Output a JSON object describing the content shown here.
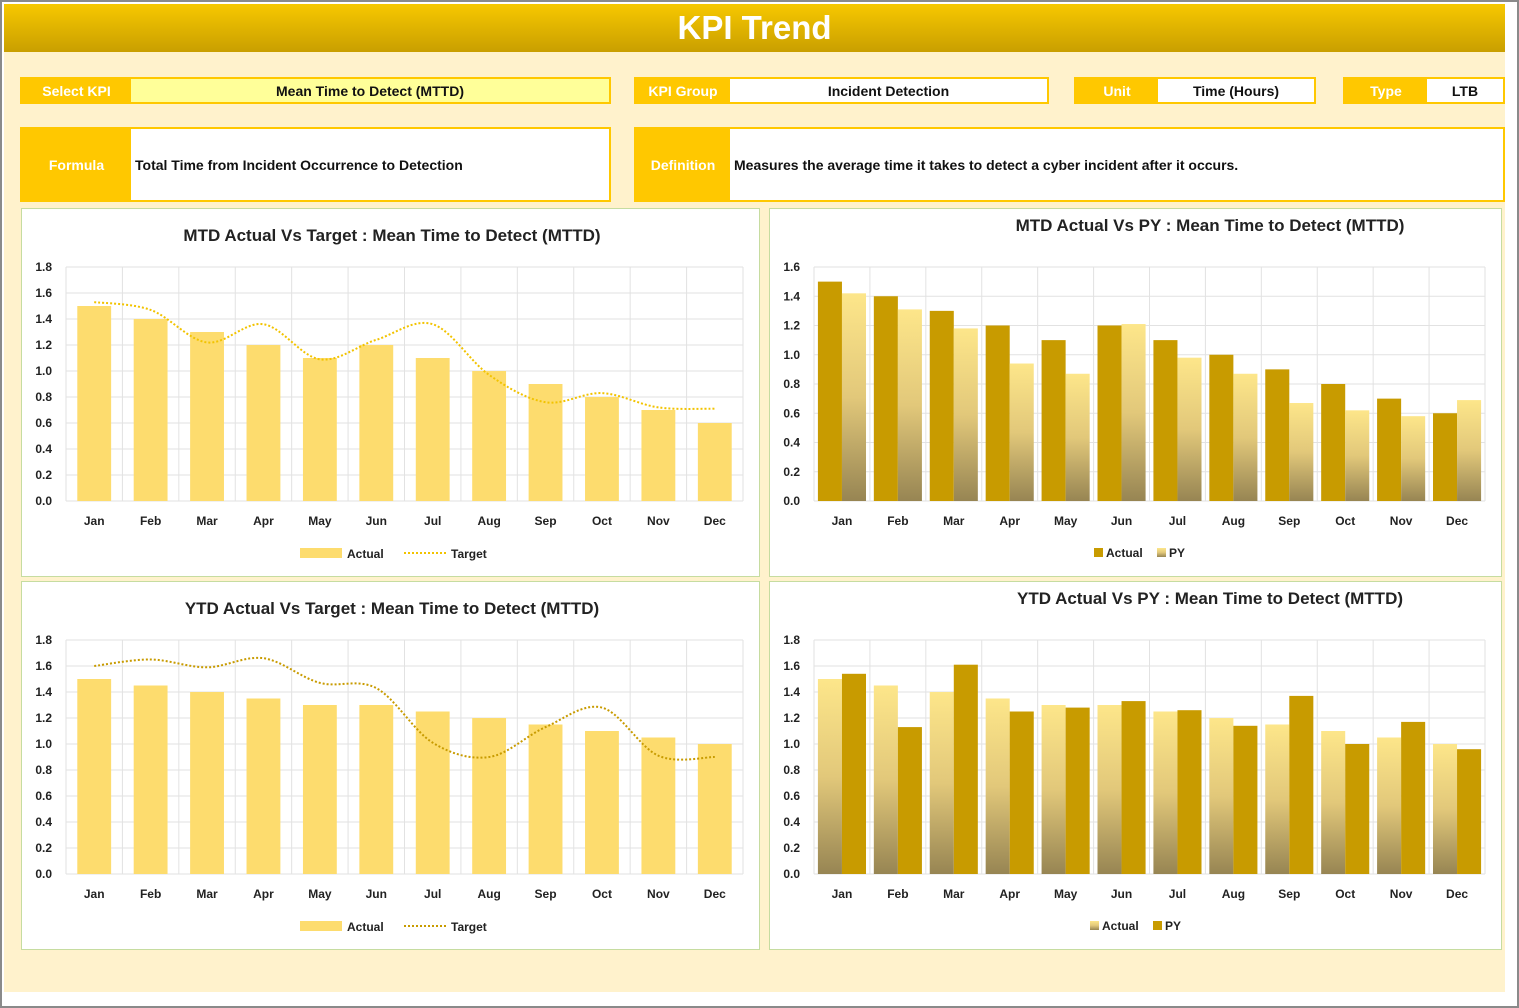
{
  "header": {
    "title": "KPI Trend"
  },
  "fields": {
    "select_kpi": {
      "label": "Select KPI",
      "value": "Mean Time to Detect (MTTD)"
    },
    "kpi_group": {
      "label": "KPI Group",
      "value": "Incident Detection"
    },
    "unit": {
      "label": "Unit",
      "value": "Time (Hours)"
    },
    "type": {
      "label": "Type",
      "value": "LTB"
    },
    "formula": {
      "label": "Formula",
      "value": "Total Time from Incident Occurrence to Detection"
    },
    "definition": {
      "label": "Definition",
      "value": "Measures the average time it takes to detect a cyber incident after it occurs."
    }
  },
  "colors": {
    "accent": "#ffc800",
    "bar_light": "#fddc6e",
    "bar_dark": "#c89b00"
  },
  "chart_data": [
    {
      "type": "bar+line",
      "title": "MTD Actual Vs Target : Mean Time to Detect (MTTD)",
      "categories": [
        "Jan",
        "Feb",
        "Mar",
        "Apr",
        "May",
        "Jun",
        "Jul",
        "Aug",
        "Sep",
        "Oct",
        "Nov",
        "Dec"
      ],
      "ylim": [
        0,
        1.8
      ],
      "yticks": [
        "0.0",
        "0.2",
        "0.4",
        "0.6",
        "0.8",
        "1.0",
        "1.2",
        "1.4",
        "1.6",
        "1.8"
      ],
      "grid": true,
      "legend": "bottom",
      "series": [
        {
          "name": "Actual",
          "kind": "bar",
          "values": [
            1.5,
            1.4,
            1.3,
            1.2,
            1.1,
            1.2,
            1.1,
            1.0,
            0.9,
            0.8,
            0.7,
            0.6
          ]
        },
        {
          "name": "Target",
          "kind": "line",
          "values": [
            1.53,
            1.47,
            1.22,
            1.36,
            1.09,
            1.24,
            1.36,
            0.97,
            0.76,
            0.83,
            0.72,
            0.71
          ]
        }
      ]
    },
    {
      "type": "bar",
      "title": "MTD Actual Vs PY : Mean Time to Detect (MTTD)",
      "categories": [
        "Jan",
        "Feb",
        "Mar",
        "Apr",
        "May",
        "Jun",
        "Jul",
        "Aug",
        "Sep",
        "Oct",
        "Nov",
        "Dec"
      ],
      "ylim": [
        0,
        1.6
      ],
      "yticks": [
        "0.0",
        "0.2",
        "0.4",
        "0.6",
        "0.8",
        "1.0",
        "1.2",
        "1.4",
        "1.6"
      ],
      "grid": true,
      "legend": "bottom",
      "series": [
        {
          "name": "Actual",
          "kind": "bar",
          "values": [
            1.5,
            1.4,
            1.3,
            1.2,
            1.1,
            1.2,
            1.1,
            1.0,
            0.9,
            0.8,
            0.7,
            0.6
          ]
        },
        {
          "name": "PY",
          "kind": "bar",
          "values": [
            1.42,
            1.31,
            1.18,
            0.94,
            0.87,
            1.21,
            0.98,
            0.87,
            0.67,
            0.62,
            0.58,
            0.69
          ]
        }
      ]
    },
    {
      "type": "bar+line",
      "title": "YTD Actual Vs Target : Mean Time to Detect (MTTD)",
      "categories": [
        "Jan",
        "Feb",
        "Mar",
        "Apr",
        "May",
        "Jun",
        "Jul",
        "Aug",
        "Sep",
        "Oct",
        "Nov",
        "Dec"
      ],
      "ylim": [
        0,
        1.8
      ],
      "yticks": [
        "0.0",
        "0.2",
        "0.4",
        "0.6",
        "0.8",
        "1.0",
        "1.2",
        "1.4",
        "1.6",
        "1.8"
      ],
      "grid": true,
      "legend": "bottom",
      "series": [
        {
          "name": "Actual",
          "kind": "bar",
          "values": [
            1.5,
            1.45,
            1.4,
            1.35,
            1.3,
            1.3,
            1.25,
            1.2,
            1.15,
            1.1,
            1.05,
            1.0
          ]
        },
        {
          "name": "Target",
          "kind": "line",
          "values": [
            1.6,
            1.65,
            1.59,
            1.66,
            1.47,
            1.43,
            1.01,
            0.9,
            1.13,
            1.28,
            0.91,
            0.9
          ]
        }
      ]
    },
    {
      "type": "bar",
      "title": "YTD Actual Vs PY : Mean Time to Detect (MTTD)",
      "categories": [
        "Jan",
        "Feb",
        "Mar",
        "Apr",
        "May",
        "Jun",
        "Jul",
        "Aug",
        "Sep",
        "Oct",
        "Nov",
        "Dec"
      ],
      "ylim": [
        0,
        1.8
      ],
      "yticks": [
        "0.0",
        "0.2",
        "0.4",
        "0.6",
        "0.8",
        "1.0",
        "1.2",
        "1.4",
        "1.6",
        "1.8"
      ],
      "grid": true,
      "legend": "bottom",
      "series": [
        {
          "name": "Actual",
          "kind": "bar",
          "values": [
            1.5,
            1.45,
            1.4,
            1.35,
            1.3,
            1.3,
            1.25,
            1.2,
            1.15,
            1.1,
            1.05,
            1.0
          ]
        },
        {
          "name": "PY",
          "kind": "bar",
          "values": [
            1.54,
            1.13,
            1.61,
            1.25,
            1.28,
            1.33,
            1.26,
            1.14,
            1.37,
            1.0,
            1.17,
            0.96
          ]
        }
      ]
    }
  ]
}
